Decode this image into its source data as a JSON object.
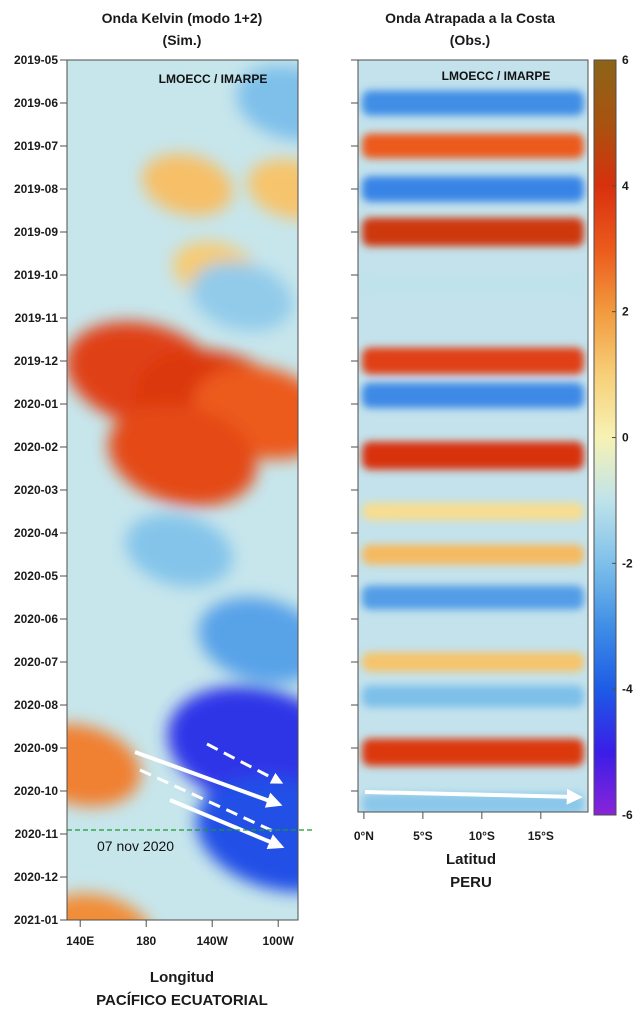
{
  "chart_data": [
    {
      "type": "heatmap",
      "title": "Onda Kelvin (modo 1+2)",
      "subtitle": "(Sim.)",
      "watermark": "LMOECC / IMARPE",
      "xlabel": "Longitud",
      "xsublabel": "PACÍFICO ECUATORIAL",
      "x_ticks": [
        "140E",
        "180",
        "140W",
        "100W"
      ],
      "x_tick_lon": [
        140,
        180,
        220,
        260
      ],
      "xlim_lon": [
        132,
        272
      ],
      "y_ticks": [
        "2019-05",
        "2019-06",
        "2019-07",
        "2019-08",
        "2019-09",
        "2019-10",
        "2019-11",
        "2019-12",
        "2020-01",
        "2020-02",
        "2020-03",
        "2020-04",
        "2020-05",
        "2020-06",
        "2020-07",
        "2020-08",
        "2020-09",
        "2020-10",
        "2020-11",
        "2020-12",
        "2021-01"
      ],
      "annotation": "07 nov 2020",
      "grid": false,
      "features": [
        {
          "lon": 205,
          "month": 2.9,
          "value": 1.3
        },
        {
          "lon": 268,
          "month": 3.0,
          "value": 1.2
        },
        {
          "lon": 222,
          "month": 4.9,
          "value": 1.1
        },
        {
          "lon": 178,
          "month": 7.3,
          "value": 3.6
        },
        {
          "lon": 222,
          "month": 8.0,
          "value": 3.8
        },
        {
          "lon": 250,
          "month": 8.2,
          "value": 3.0
        },
        {
          "lon": 202,
          "month": 9.2,
          "value": 3.4
        },
        {
          "lon": 140,
          "month": 16.4,
          "value": 2.4
        },
        {
          "lon": 150,
          "month": 20.3,
          "value": 2.2
        },
        {
          "lon": 238,
          "month": 5.5,
          "value": -1.7
        },
        {
          "lon": 200,
          "month": 11.4,
          "value": -1.9
        },
        {
          "lon": 250,
          "month": 13.5,
          "value": -2.6
        },
        {
          "lon": 248,
          "month": 16.0,
          "value": -4.6
        },
        {
          "lon": 262,
          "month": 18.0,
          "value": -4.2
        },
        {
          "lon": 268,
          "month": 1.0,
          "value": -2.0
        }
      ]
    },
    {
      "type": "heatmap",
      "title": "Onda Atrapada a la Costa",
      "subtitle": "(Obs.)",
      "watermark": "LMOECC / IMARPE",
      "xlabel": "Latitud",
      "xsublabel": "PERU",
      "x_ticks": [
        "0°N",
        "5°S",
        "10°S",
        "15°S"
      ],
      "x_tick_lat": [
        0,
        5,
        10,
        15
      ],
      "xlim_lat": [
        -0.5,
        19
      ],
      "y_ticks_same_as_left": true,
      "grid": false,
      "bands": [
        {
          "month": 1.0,
          "value": -3.0
        },
        {
          "month": 2.0,
          "value": 3.0
        },
        {
          "month": 3.0,
          "value": -3.2
        },
        {
          "month": 4.0,
          "value": 4.2
        },
        {
          "month": 5.2,
          "value": -1.0
        },
        {
          "month": 7.0,
          "value": 3.6
        },
        {
          "month": 7.8,
          "value": -3.1
        },
        {
          "month": 9.2,
          "value": 4.0
        },
        {
          "month": 10.5,
          "value": 0.6
        },
        {
          "month": 11.5,
          "value": 1.4
        },
        {
          "month": 12.5,
          "value": -2.7
        },
        {
          "month": 14.0,
          "value": 1.2
        },
        {
          "month": 14.8,
          "value": -2.0
        },
        {
          "month": 16.1,
          "value": 3.8
        },
        {
          "month": 17.3,
          "value": -1.8
        }
      ]
    }
  ],
  "colorbar": {
    "ticks": [
      "6",
      "4",
      "2",
      "0",
      "-2",
      "-4",
      "-6"
    ],
    "range": [
      -6,
      6
    ],
    "colors": [
      "#8a24d8",
      "#3a1ee8",
      "#1d5be6",
      "#3f8ee6",
      "#7ec0ea",
      "#bfe3ea",
      "#f7f2b4",
      "#f7cf78",
      "#f29a3e",
      "#ec5a1c",
      "#d8300e",
      "#a8530f",
      "#8c6418"
    ]
  }
}
